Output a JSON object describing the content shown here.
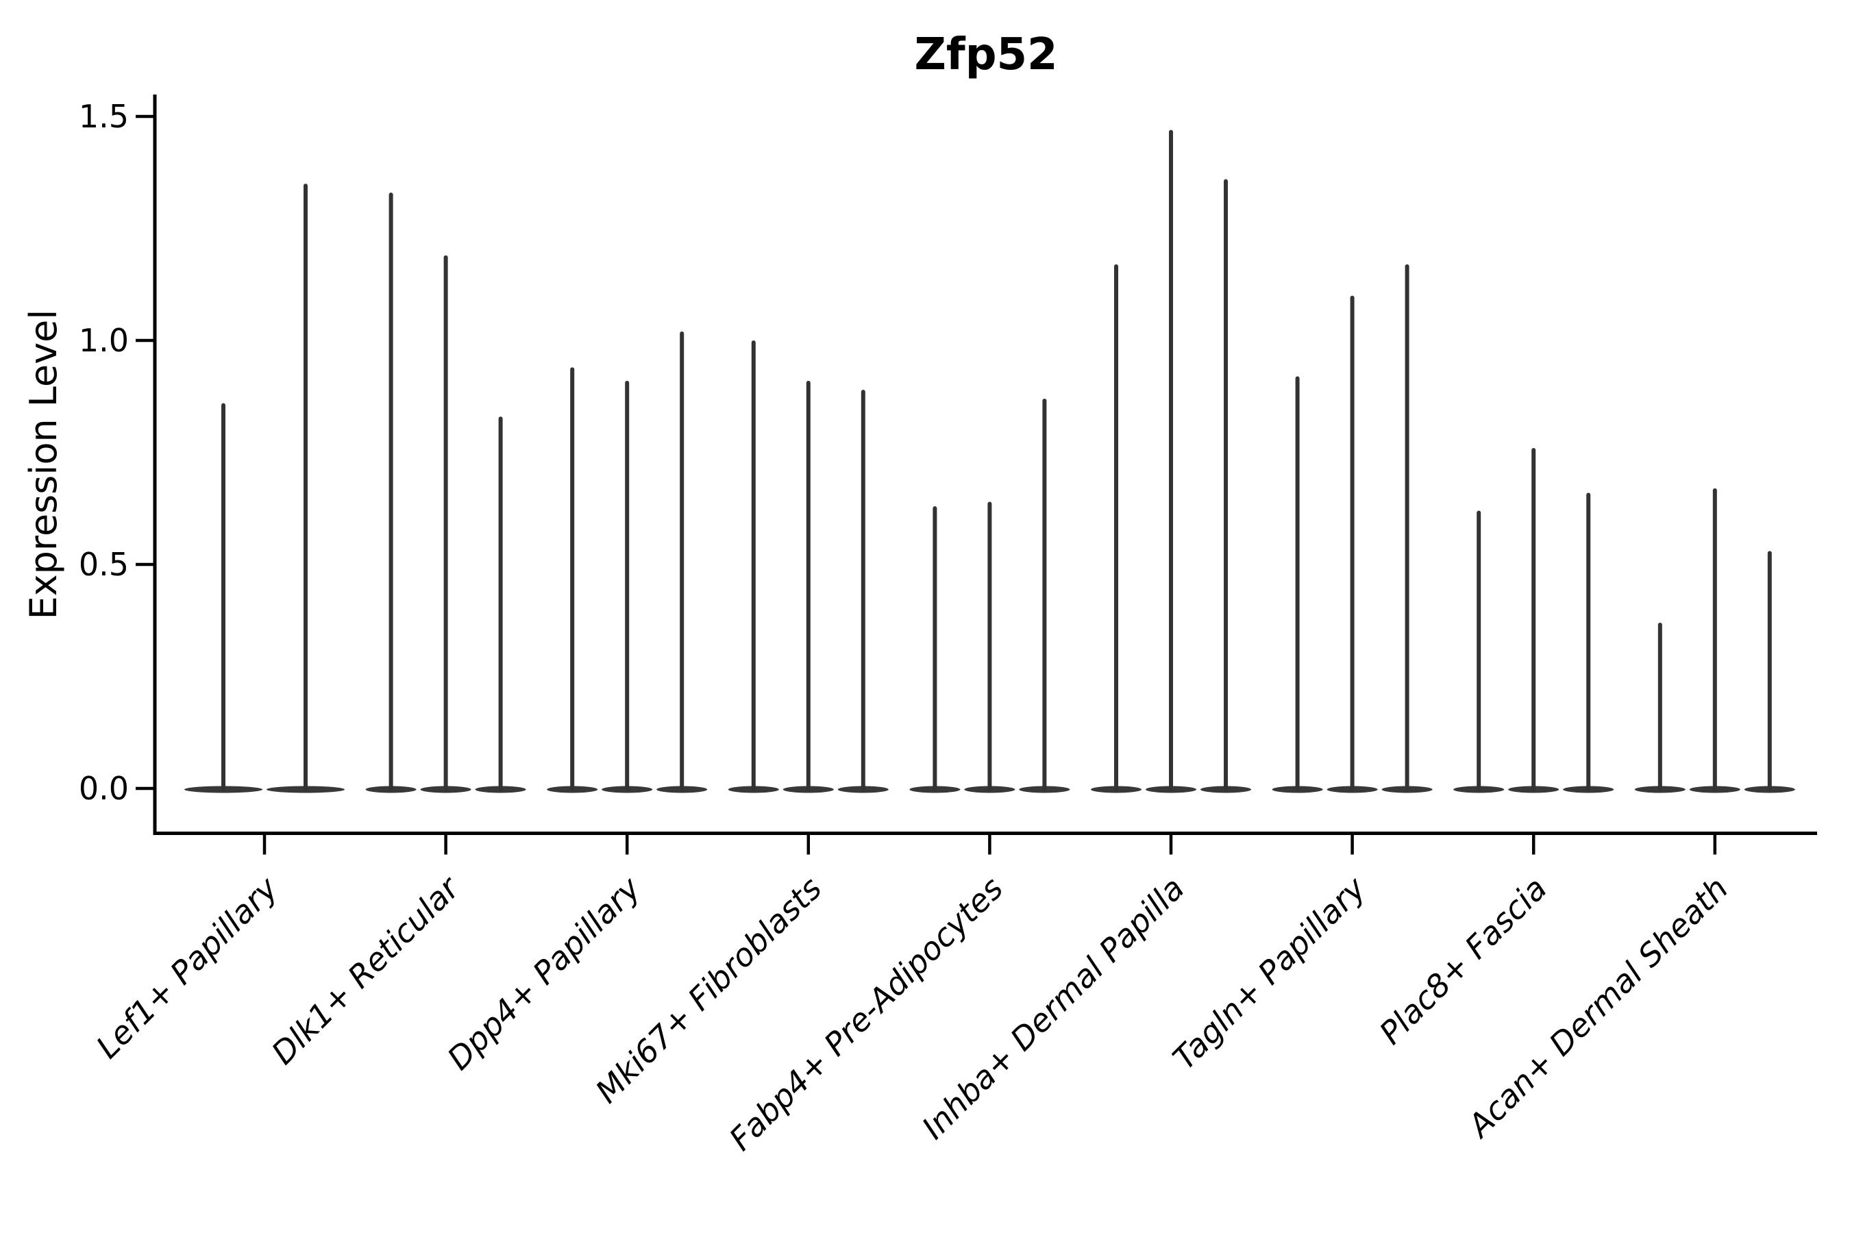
{
  "page": {
    "background": "#ffffff"
  },
  "chart_data": {
    "type": "violin",
    "title": "Zfp52",
    "title_weight": "bold",
    "xlabel": "",
    "ylabel": "Expression Level",
    "ylim": [
      -0.09,
      1.56
    ],
    "yticks": [
      0.0,
      0.5,
      1.0,
      1.5
    ],
    "ytick_labels": [
      "0.0",
      "0.5",
      "1.0",
      "1.5"
    ],
    "grid": false,
    "legend": false,
    "spines": [
      "left",
      "bottom"
    ],
    "x_tick_label_rotation_deg": 45,
    "x_tick_label_style": "italic",
    "description": "Needle-style violin plot of gene expression: each violin is a flat body at 0 (most cells zero) with a thin vertical spike up to the maximum expression value; 2-3 violins (split groups) per cell-type category.",
    "categories": [
      "Lef1+ Papillary",
      "Dlk1+ Reticular",
      "Dpp4+ Papillary",
      "Mki67+ Fibroblasts",
      "Fabp4+ Pre-Adipocytes",
      "Inhba+ Dermal Papilla",
      "Tagln+ Papillary",
      "Plac8+ Fascia",
      "Acan+ Dermal Sheath"
    ],
    "violins": [
      {
        "category": "Lef1+ Papillary",
        "body_value": 0,
        "spike_maxima": [
          0.86,
          1.35
        ]
      },
      {
        "category": "Dlk1+ Reticular",
        "body_value": 0,
        "spike_maxima": [
          1.33,
          1.19,
          0.83
        ]
      },
      {
        "category": "Dpp4+ Papillary",
        "body_value": 0,
        "spike_maxima": [
          0.94,
          0.91,
          1.02
        ]
      },
      {
        "category": "Mki67+ Fibroblasts",
        "body_value": 0,
        "spike_maxima": [
          1.0,
          0.91,
          0.89
        ]
      },
      {
        "category": "Fabp4+ Pre-Adipocytes",
        "body_value": 0,
        "spike_maxima": [
          0.63,
          0.64,
          0.87
        ]
      },
      {
        "category": "Inhba+ Dermal Papilla",
        "body_value": 0,
        "spike_maxima": [
          1.17,
          1.47,
          1.36
        ]
      },
      {
        "category": "Tagln+ Papillary",
        "body_value": 0,
        "spike_maxima": [
          0.92,
          1.1,
          1.17
        ]
      },
      {
        "category": "Plac8+ Fascia",
        "body_value": 0,
        "spike_maxima": [
          0.62,
          0.76,
          0.66
        ]
      },
      {
        "category": "Acan+ Dermal Sheath",
        "body_value": 0,
        "spike_maxima": [
          0.37,
          0.67,
          0.53
        ]
      }
    ],
    "colors": {
      "violin": "#333333",
      "violin_body": "#383838",
      "axis": "#000000",
      "text": "#000000",
      "background": "#ffffff"
    }
  }
}
